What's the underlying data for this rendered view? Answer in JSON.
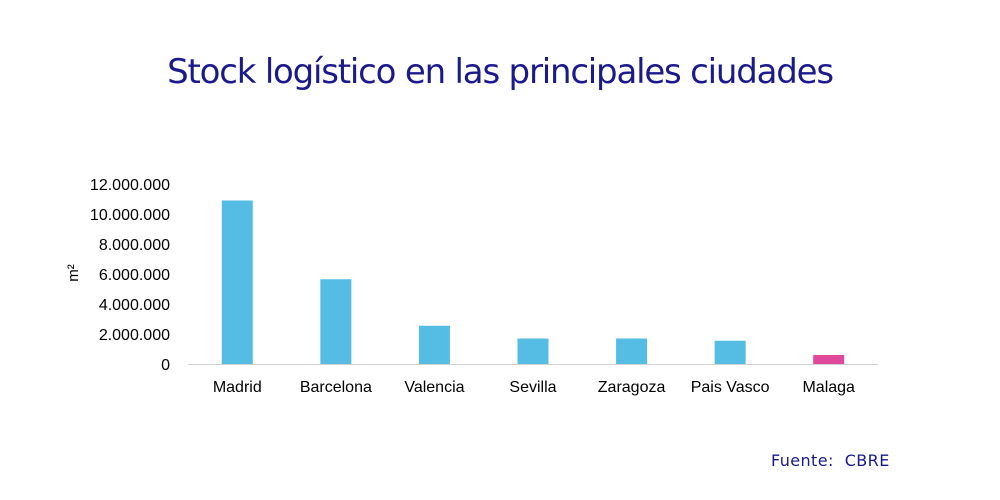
{
  "chart_data": {
    "type": "bar",
    "title": "Stock logístico en las principales ciudades",
    "xlabel": "",
    "ylabel": "m²",
    "categories": [
      "Madrid",
      "Barcelona",
      "Valencia",
      "Sevilla",
      "Zaragoza",
      "Pais Vasco",
      "Malaga"
    ],
    "values": [
      10900000,
      5650000,
      2550000,
      1700000,
      1700000,
      1550000,
      600000
    ],
    "bar_colors": [
      "#55bde4",
      "#55bde4",
      "#55bde4",
      "#55bde4",
      "#55bde4",
      "#55bde4",
      "#e0489c"
    ],
    "ylim": [
      0,
      12000000
    ],
    "yticks": [
      0,
      2000000,
      4000000,
      6000000,
      8000000,
      10000000,
      12000000
    ],
    "ytick_labels": [
      "0",
      "2.000.000",
      "4.000.000",
      "6.000.000",
      "8.000.000",
      "10.000.000",
      "12.000.000"
    ],
    "grid": false,
    "legend": "none"
  },
  "source": "Fuente:  CBRE",
  "colors": {
    "title": "#1a1a8c",
    "source": "#1a1a8c",
    "bar": "#55bde4",
    "highlight_bar": "#e0489c",
    "axis": "#d0d0d0"
  }
}
